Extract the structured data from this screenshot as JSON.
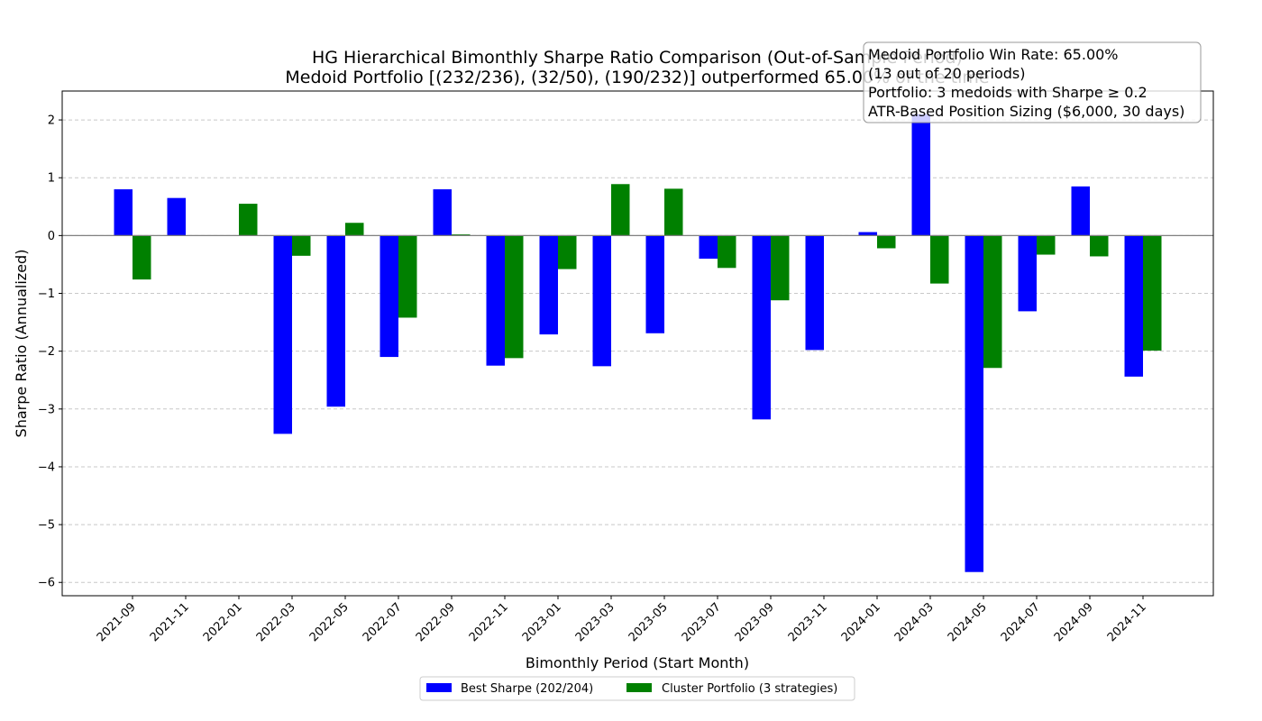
{
  "chart_data": {
    "type": "bar",
    "title_line1": "HG Hierarchical Bimonthly Sharpe Ratio Comparison (Out-of-Sample Period)",
    "title_line2": "Medoid Portfolio [(232/236), (32/50), (190/232)] outperformed 65.00% of the time",
    "xlabel": "Bimonthly Period (Start Month)",
    "ylabel": "Sharpe Ratio (Annualized)",
    "ylim": [
      -6.23,
      2.5
    ],
    "yticks": [
      2,
      1,
      0,
      -1,
      -2,
      -3,
      -4,
      -5,
      -6
    ],
    "ytick_labels": [
      "2",
      "1",
      "0",
      "−1",
      "−2",
      "−3",
      "−4",
      "−5",
      "−6"
    ],
    "grid": "y-dashed",
    "legend_position": "bottom-center",
    "categories": [
      "2021-09",
      "2021-11",
      "2022-01",
      "2022-03",
      "2022-05",
      "2022-07",
      "2022-09",
      "2022-11",
      "2023-01",
      "2023-03",
      "2023-05",
      "2023-07",
      "2023-09",
      "2023-11",
      "2024-01",
      "2024-03",
      "2024-05",
      "2024-07",
      "2024-09",
      "2024-11"
    ],
    "series": [
      {
        "name": "Best Sharpe (202/204)",
        "color": "#0000ff",
        "values": [
          0.8,
          0.65,
          0.0,
          -3.43,
          -2.96,
          -2.1,
          0.8,
          -2.25,
          -1.71,
          -2.26,
          -1.69,
          -0.4,
          -3.18,
          -1.98,
          0.06,
          2.1,
          -5.82,
          -1.31,
          0.85,
          -2.44
        ]
      },
      {
        "name": "Cluster Portfolio (3 strategies)",
        "color": "#008000",
        "values": [
          -0.76,
          0.0,
          0.55,
          -0.35,
          0.22,
          -1.42,
          0.02,
          -2.12,
          -0.58,
          0.89,
          0.81,
          -0.56,
          -1.12,
          0.0,
          -0.22,
          -0.83,
          -2.29,
          -0.33,
          -0.36,
          -1.99
        ]
      }
    ],
    "annotation": {
      "lines": [
        "Medoid Portfolio Win Rate: 65.00%",
        "(13 out of 20 periods)",
        "Portfolio: 3 medoids with Sharpe ≥ 0.2",
        "ATR-Based Position Sizing ($6,000, 30 days)"
      ]
    }
  }
}
